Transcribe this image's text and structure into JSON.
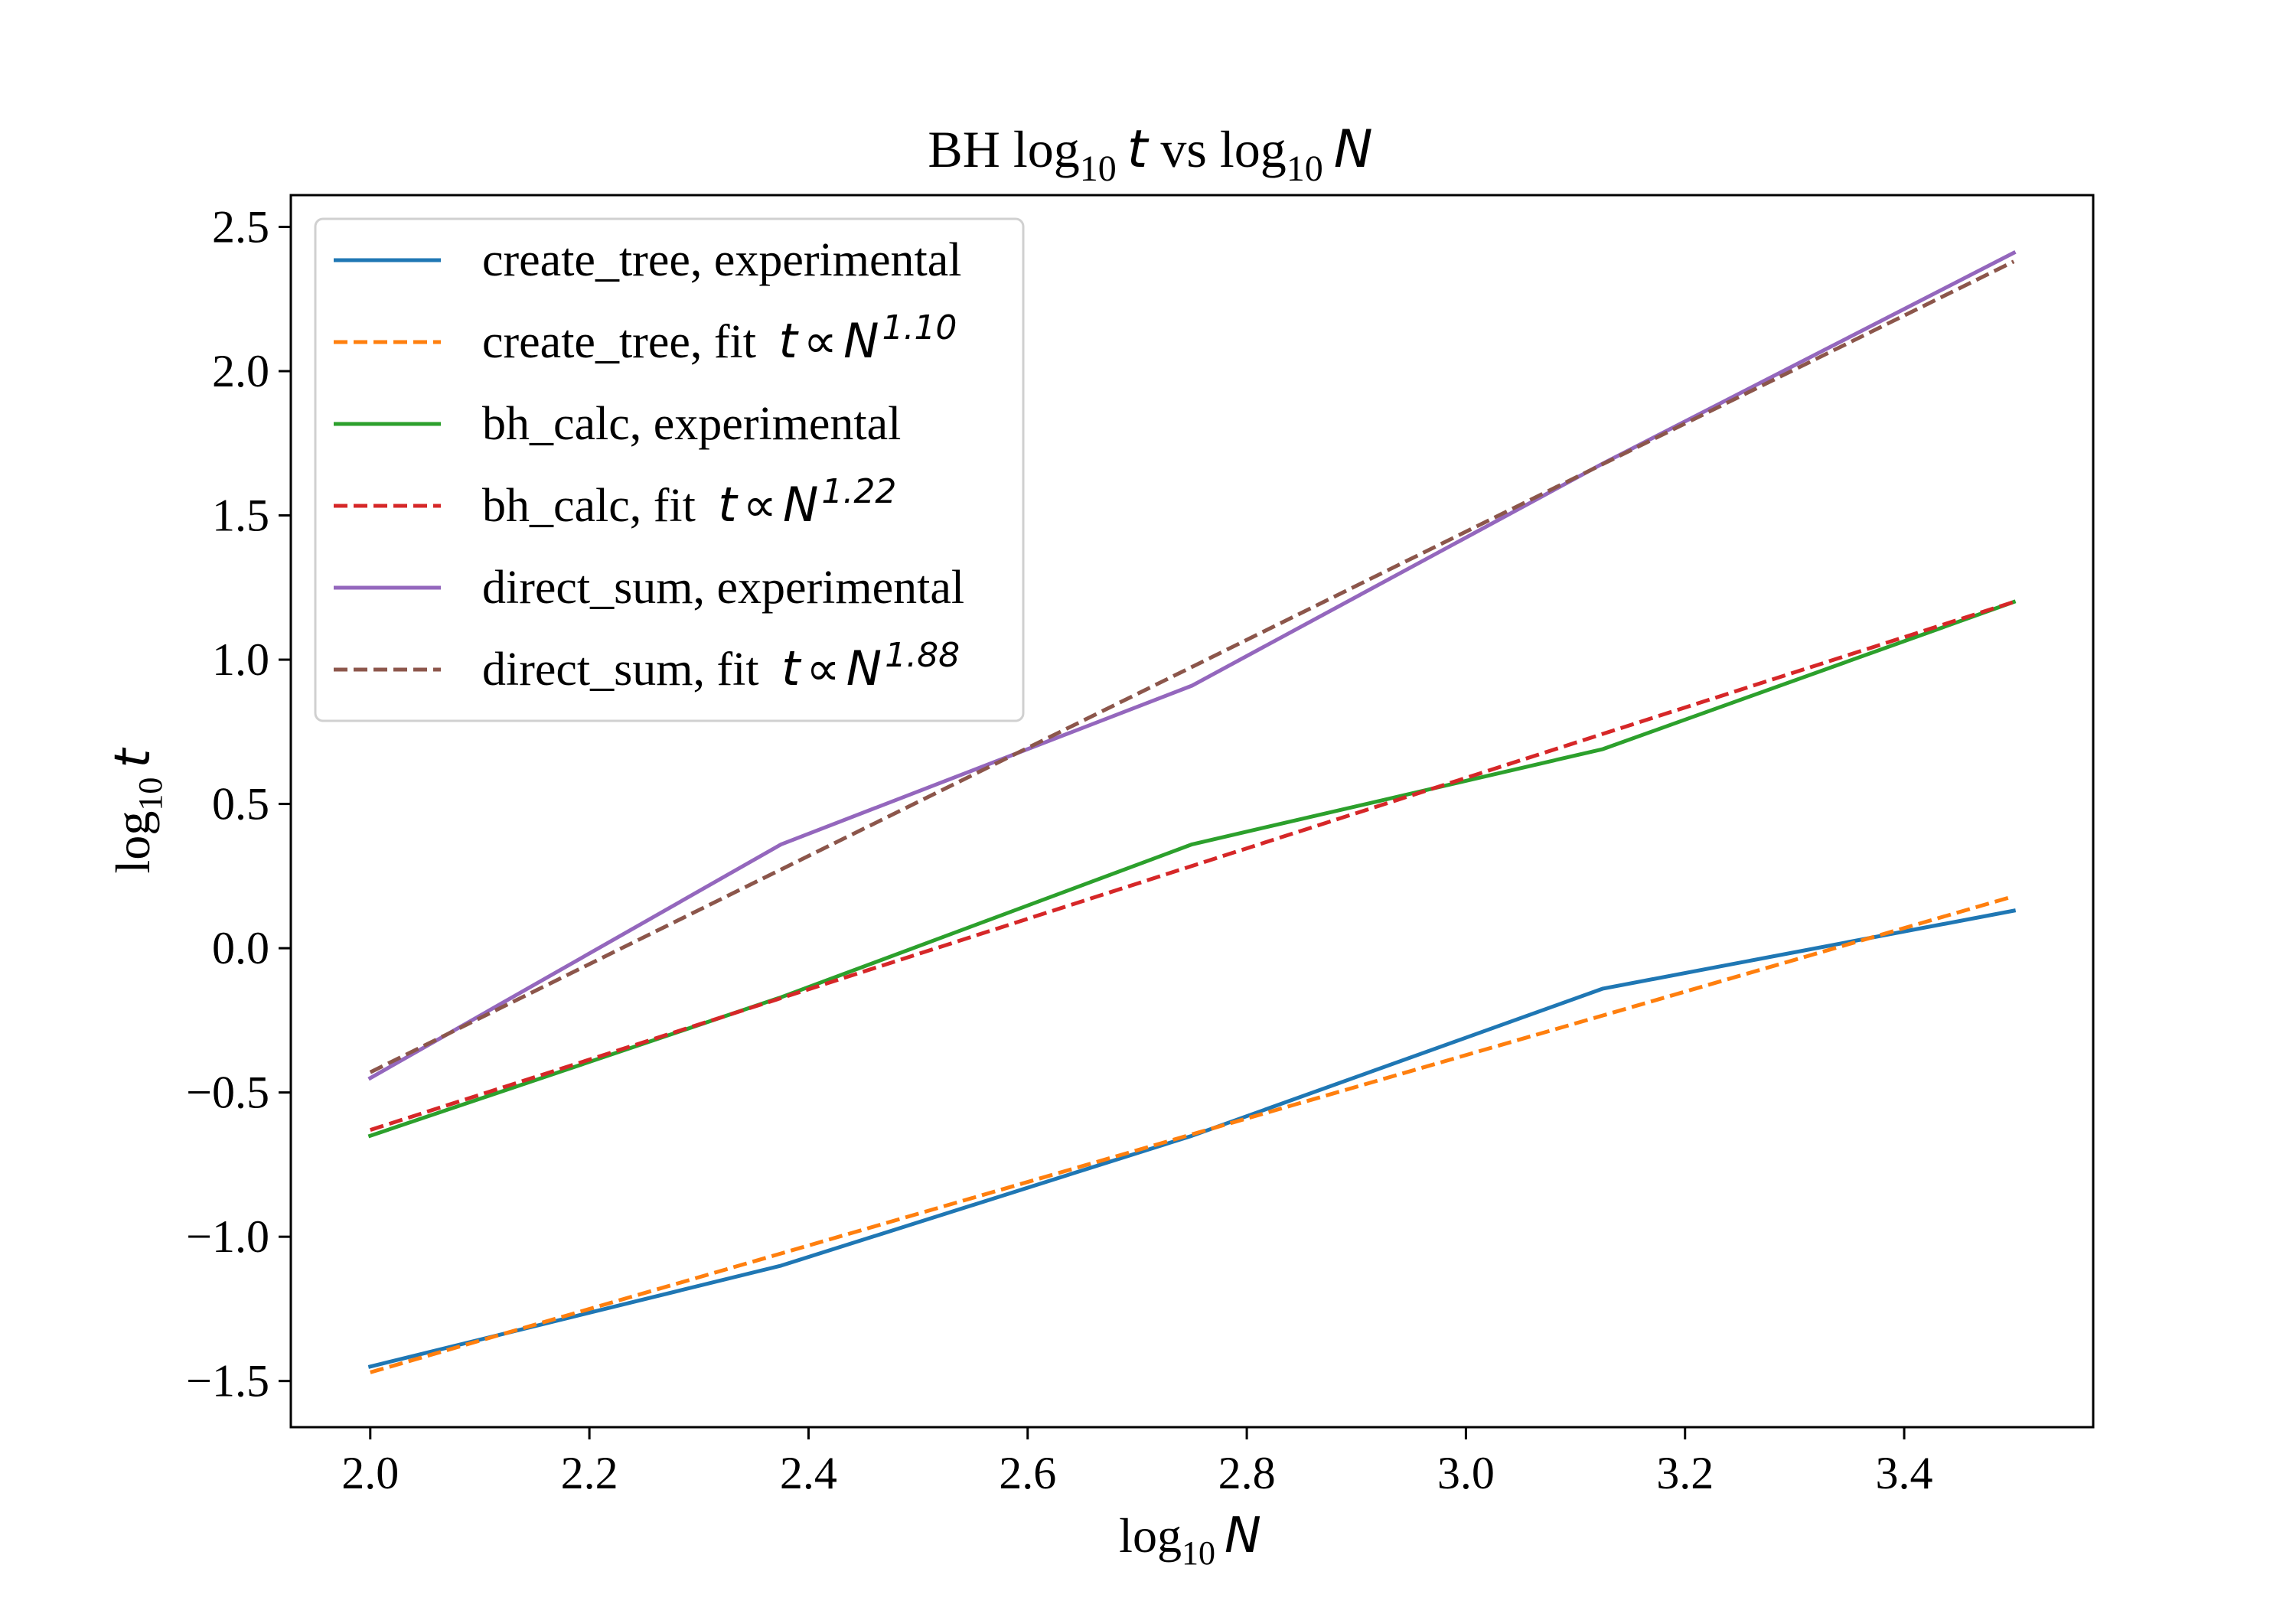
{
  "chart_data": {
    "type": "line",
    "title": {
      "prefix": "BH log",
      "sub1": "10",
      "var1": "t",
      "mid": " vs log",
      "sub2": "10",
      "var2": "N"
    },
    "xlabel": {
      "base": "log",
      "sub": "10",
      "var": "N"
    },
    "ylabel": {
      "base": "log",
      "sub": "10",
      "var": "t"
    },
    "xlim": [
      1.9275,
      3.5725
    ],
    "ylim": [
      -1.66,
      2.61
    ],
    "xticks": [
      "2.0",
      "2.2",
      "2.4",
      "2.6",
      "2.8",
      "3.0",
      "3.2",
      "3.4"
    ],
    "yticks": [
      "−1.5",
      "−1.0",
      "−0.5",
      "0.0",
      "0.5",
      "1.0",
      "1.5",
      "2.0",
      "2.5"
    ],
    "xtick_values": [
      2.0,
      2.2,
      2.4,
      2.6,
      2.8,
      3.0,
      3.2,
      3.4
    ],
    "ytick_values": [
      -1.5,
      -1.0,
      -0.5,
      0.0,
      0.5,
      1.0,
      1.5,
      2.0,
      2.5
    ],
    "grid": false,
    "legend_position": "top-left",
    "x": [
      2.0,
      2.375,
      2.75,
      3.125,
      3.5
    ],
    "series": [
      {
        "name": "create_tree, experimental",
        "label": "create_tree, experimental",
        "exponent": "",
        "color": "#1f77b4",
        "dash": "solid",
        "values": [
          -1.45,
          -1.1,
          -0.65,
          -0.14,
          0.13
        ]
      },
      {
        "name": "create_tree, fit t ∝ N^1.10",
        "label": "create_tree, fit ",
        "exponent": "1.10",
        "color": "#ff7f0e",
        "dash": "dashed",
        "values": [
          -1.47,
          -1.058,
          -0.645,
          -0.233,
          0.18
        ]
      },
      {
        "name": "bh_calc, experimental",
        "label": "bh_calc, experimental",
        "exponent": "",
        "color": "#2ca02c",
        "dash": "solid",
        "values": [
          -0.65,
          -0.17,
          0.36,
          0.69,
          1.2
        ]
      },
      {
        "name": "bh_calc, fit t ∝ N^1.22",
        "label": "bh_calc, fit ",
        "exponent": "1.22",
        "color": "#d62728",
        "dash": "dashed",
        "values": [
          -0.63,
          -0.173,
          0.285,
          0.743,
          1.2
        ]
      },
      {
        "name": "direct_sum, experimental",
        "label": "direct_sum, experimental",
        "exponent": "",
        "color": "#9467bd",
        "dash": "solid",
        "values": [
          -0.45,
          0.36,
          0.91,
          1.68,
          2.41
        ]
      },
      {
        "name": "direct_sum, fit t ∝ N^1.88",
        "label": "direct_sum, fit ",
        "exponent": "1.88",
        "color": "#8c564b",
        "dash": "dashed",
        "values": [
          -0.43,
          0.273,
          0.975,
          1.678,
          2.38
        ]
      }
    ]
  }
}
